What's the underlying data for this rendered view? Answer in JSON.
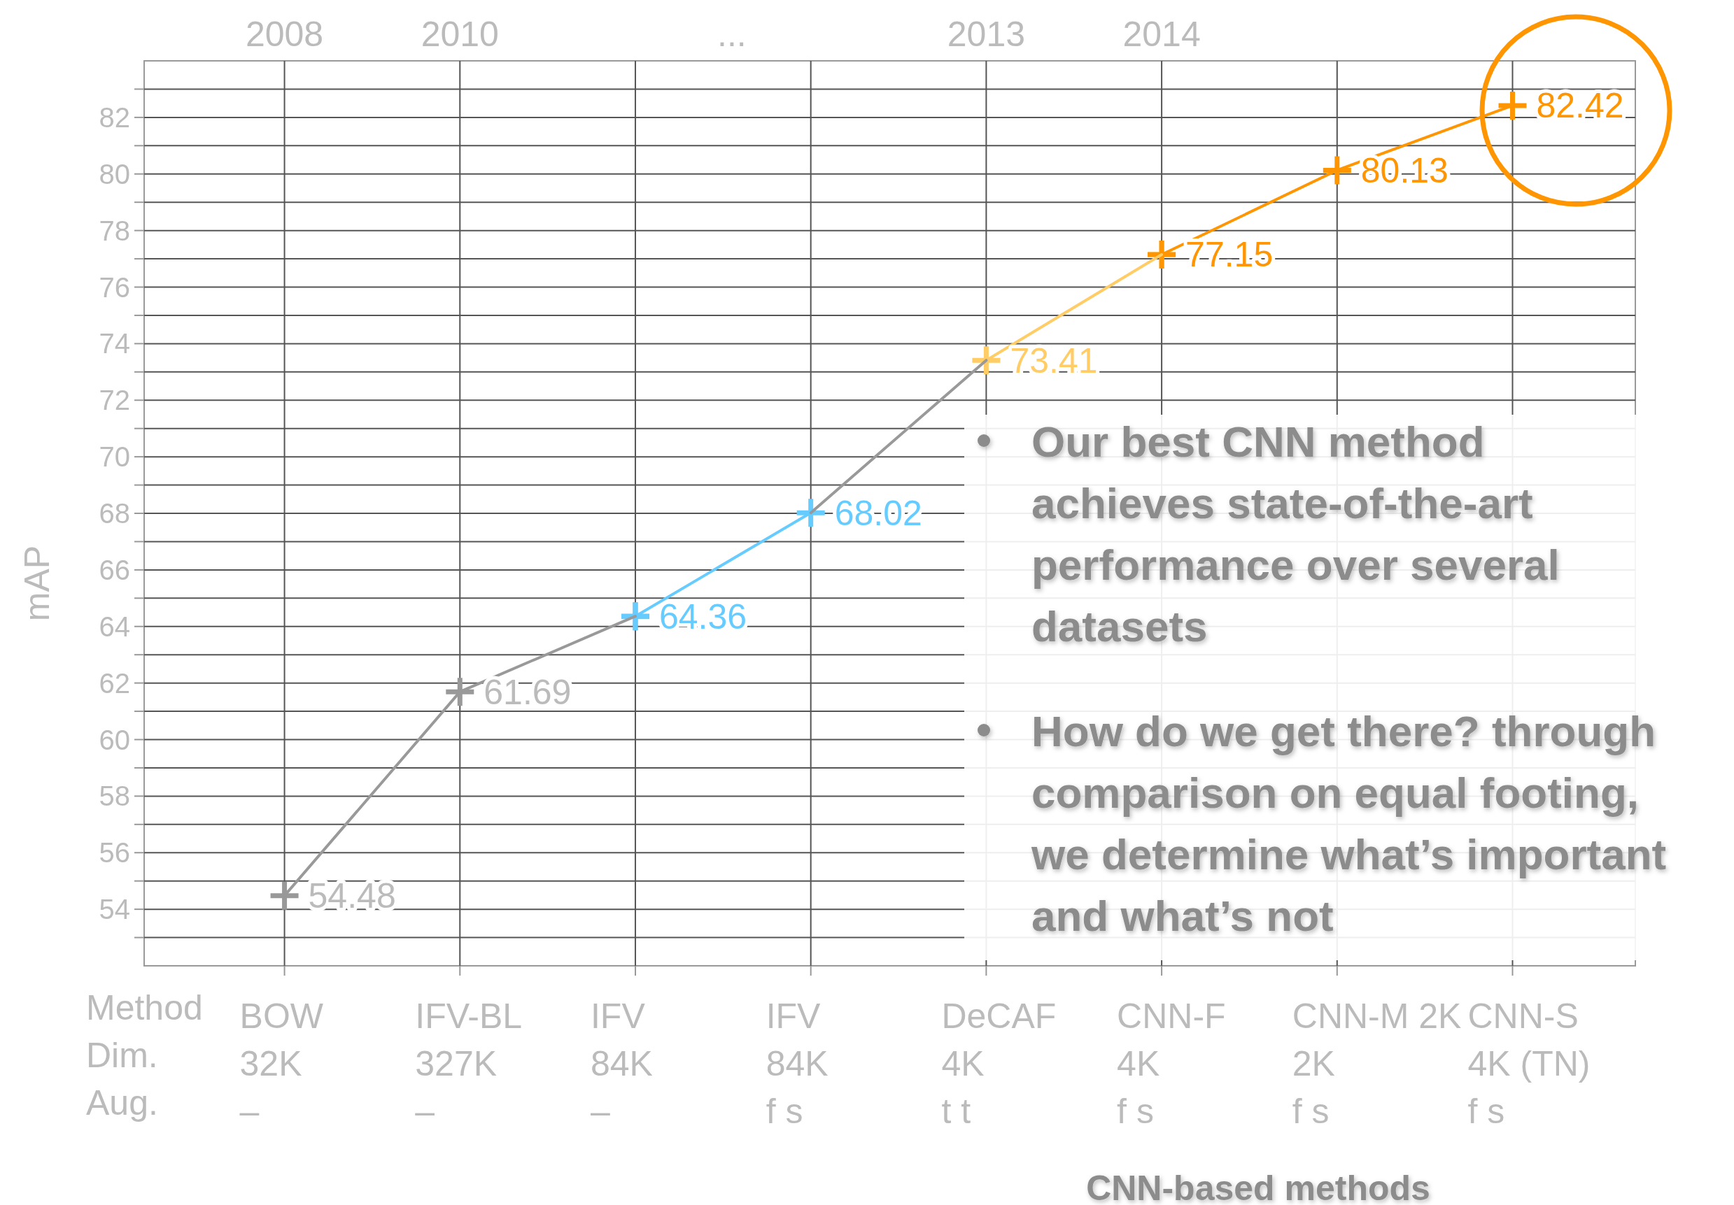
{
  "chart_data": {
    "type": "line",
    "categories": [
      "BOW\n32K\n–",
      "IFV-BL\n327K\n–",
      "IFV\n84K\n–",
      "IFV\n84K\nf s",
      "DeCAF\n4K\nt t",
      "CNN-F\n4K\nf s",
      "CNN-M 2K\n2K\nf s",
      "CNN-S\n4K (TN)\nf s"
    ],
    "series": [
      {
        "color": "#999999",
        "marker": "cross",
        "values": [
          54.48,
          61.69,
          64.36,
          null,
          null,
          null,
          null,
          null
        ],
        "value_labels": [
          "54.48",
          "61.69",
          null,
          null,
          null,
          null,
          null,
          null
        ]
      },
      {
        "color": "#999999",
        "marker": "none",
        "values": [
          null,
          null,
          null,
          68.02,
          73.41,
          null,
          null,
          null
        ]
      },
      {
        "color": "#66ccff",
        "marker": "cross",
        "values": [
          null,
          null,
          64.36,
          68.02,
          null,
          null,
          null,
          null
        ],
        "value_labels": [
          null,
          null,
          "64.36",
          "68.02",
          null,
          null,
          null,
          null
        ]
      },
      {
        "color": "#ffcc66",
        "marker": "cross",
        "values": [
          null,
          null,
          null,
          null,
          73.41,
          77.15,
          null,
          null
        ],
        "value_labels": [
          null,
          null,
          null,
          null,
          "73.41",
          null,
          null,
          null
        ]
      },
      {
        "color": "#ff9500",
        "marker": "cross",
        "values": [
          null,
          null,
          null,
          null,
          null,
          77.15,
          80.13,
          82.42
        ],
        "value_labels": [
          null,
          null,
          null,
          null,
          null,
          "77.15",
          "80.13",
          "82.42"
        ]
      }
    ],
    "ylabel": "mAP",
    "ylim": [
      52,
      84
    ],
    "yticks": [
      {
        "value": 53,
        "label": null
      },
      54,
      {
        "value": 55,
        "label": null
      },
      56,
      {
        "value": 57,
        "label": null
      },
      58,
      {
        "value": 59,
        "label": null
      },
      60,
      {
        "value": 61,
        "label": null
      },
      62,
      {
        "value": 63,
        "label": null
      },
      64,
      {
        "value": 65,
        "label": null
      },
      66,
      {
        "value": 67,
        "label": null
      },
      68,
      {
        "value": 69,
        "label": null
      },
      70,
      {
        "value": 71,
        "label": null
      },
      72,
      {
        "value": 73,
        "label": null
      },
      74,
      {
        "value": 75,
        "label": null
      },
      76,
      {
        "value": 77,
        "label": null
      },
      78,
      {
        "value": 79,
        "label": null
      },
      80,
      {
        "value": 81,
        "label": null
      },
      82,
      {
        "value": 83,
        "label": null
      }
    ],
    "grid": true,
    "annotations": [
      "Our best CNN method achieves state-of-the-art performance over several datasets",
      "How do we get there? through comparison on equal footing, we determine what’s important and what’s not",
      "CNN-based methods",
      "Method",
      "Dim.",
      "Aug.",
      "...",
      "2008",
      "2010",
      "2013",
      "2014"
    ]
  }
}
